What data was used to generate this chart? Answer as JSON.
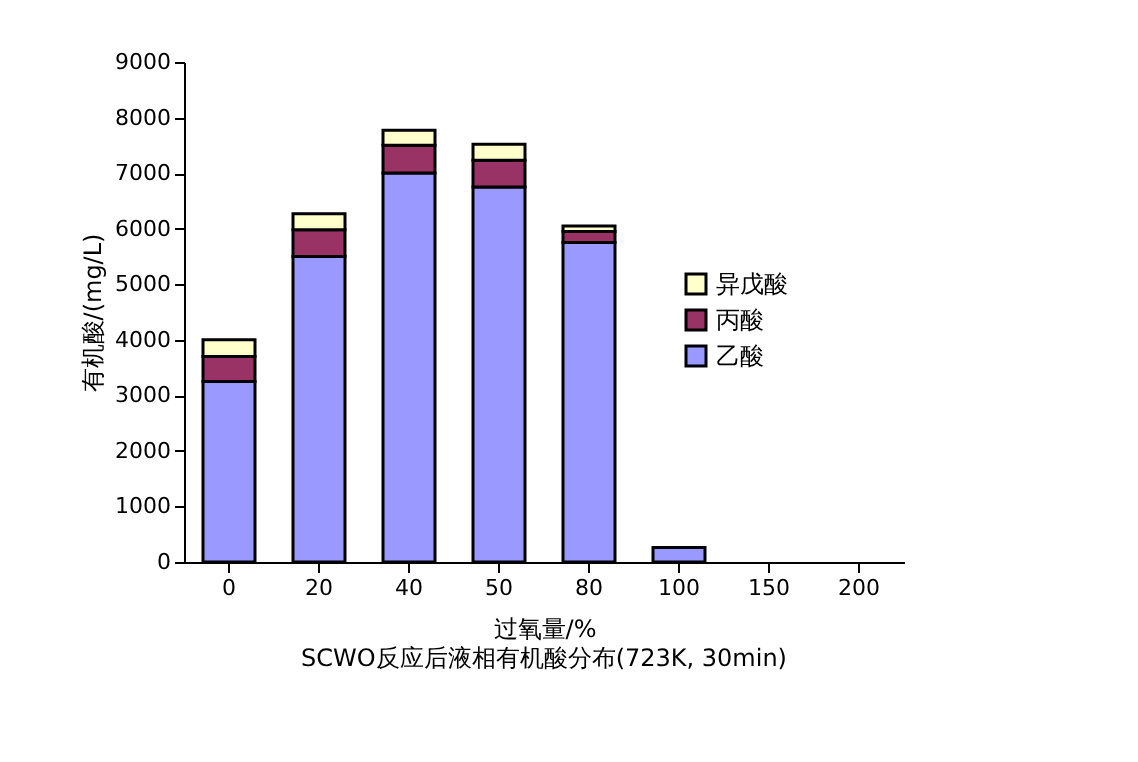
{
  "chart_data": {
    "type": "bar",
    "stacked": true,
    "categories": [
      "0",
      "20",
      "40",
      "50",
      "80",
      "100",
      "150",
      "200"
    ],
    "series": [
      {
        "name": "乙酸",
        "color": "#9999ff",
        "values": [
          3250,
          5500,
          7000,
          6750,
          5750,
          260,
          0,
          0
        ]
      },
      {
        "name": "丙酸",
        "color": "#993366",
        "values": [
          450,
          480,
          500,
          480,
          200,
          0,
          0,
          0
        ]
      },
      {
        "name": "异戊酸",
        "color": "#ffffcc",
        "values": [
          300,
          290,
          270,
          290,
          100,
          0,
          0,
          0
        ]
      }
    ],
    "ylim": [
      0,
      9000
    ],
    "yticks": [
      0,
      1000,
      2000,
      3000,
      4000,
      5000,
      6000,
      7000,
      8000,
      9000
    ],
    "xlabel": "过氧量/%",
    "ylabel": "有机酸/(mg/L)",
    "legend": "right",
    "grid": false,
    "annotations": [
      "SCWO反应后液相有机酸分布(723K, 30min)"
    ]
  }
}
